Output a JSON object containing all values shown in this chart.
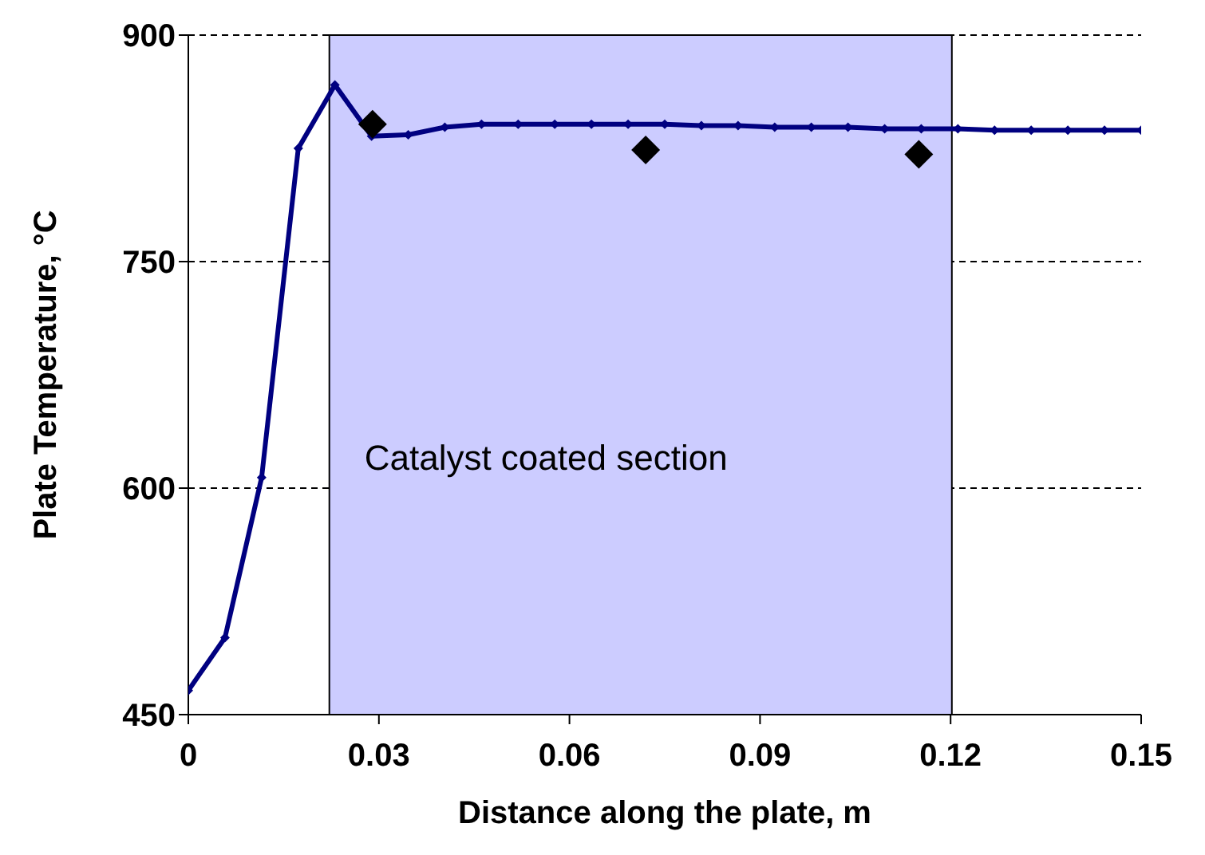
{
  "chart_data": {
    "type": "line",
    "xlabel": "Distance along the plate, m",
    "ylabel": "Plate Temperature, °C",
    "xlim": [
      0,
      0.15
    ],
    "xticks": [
      0,
      0.03,
      0.06,
      0.09,
      0.12,
      0.15
    ],
    "ylim": [
      450,
      900
    ],
    "yticks": [
      450,
      600,
      750,
      900
    ],
    "grid": "y",
    "legend": false,
    "series": [
      {
        "type": "line",
        "color": "#000080",
        "marker": "diamond",
        "line_style": "solid",
        "x": [
          0,
          0.00577,
          0.01154,
          0.01731,
          0.02308,
          0.02885,
          0.03462,
          0.04038,
          0.04615,
          0.05192,
          0.05769,
          0.06346,
          0.06923,
          0.075,
          0.08077,
          0.08654,
          0.09231,
          0.09808,
          0.10385,
          0.10962,
          0.11538,
          0.12115,
          0.12692,
          0.13269,
          0.13846,
          0.14423,
          0.15
        ],
        "values": [
          466,
          501,
          607,
          825,
          867,
          833,
          834,
          839,
          841,
          841,
          841,
          841,
          841,
          841,
          840,
          840,
          839,
          839,
          839,
          838,
          838,
          838,
          837,
          837,
          837,
          837,
          837
        ]
      },
      {
        "type": "scatter",
        "color": "#000000",
        "marker": "diamond",
        "x": [
          0.029,
          0.072,
          0.115
        ],
        "values": [
          841,
          824,
          821
        ]
      }
    ],
    "bands": [
      {
        "axis": "x",
        "from": 0.0222,
        "to": 0.1202,
        "label": "Catalyst coated section",
        "color": "#ccccff"
      }
    ]
  }
}
